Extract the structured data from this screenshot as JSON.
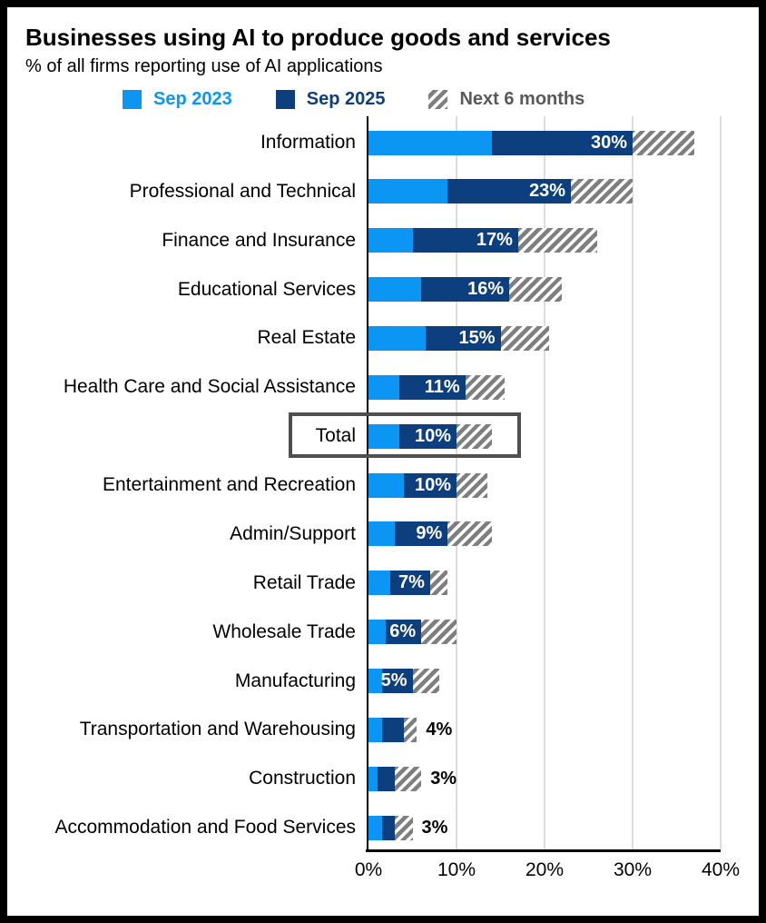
{
  "legend": [
    {
      "label": "Sep 2023",
      "color": "#0b96f3",
      "swatch": "solid",
      "icon": "square-swatch"
    },
    {
      "label": "Sep 2025",
      "color": "#0d3e7d",
      "swatch": "solid",
      "icon": "square-swatch"
    },
    {
      "label": "Next 6 months",
      "color": "#595959",
      "swatch": "hatch",
      "icon": "hatched-swatch"
    }
  ],
  "colors": {
    "sep_2023": "#0b96f3",
    "sep_2025": "#0d3e7d",
    "hatch_gray": "#7f7f7f",
    "gridline": "#dcdcdc",
    "axis": "#000000",
    "total_box_border": "#4f4f4f",
    "frame_border": "#000000"
  },
  "chart_data": {
    "type": "bar",
    "orientation": "horizontal",
    "mode": "layered_overlap",
    "title": "Businesses using AI to produce goods and services",
    "subtitle": "% of all firms reporting use of AI applications",
    "xlabel": "",
    "ylabel": "",
    "xlim": [
      0,
      40
    ],
    "x_tick_labels": [
      "0%",
      "10%",
      "20%",
      "30%",
      "40%"
    ],
    "grid": true,
    "legend_position": "top",
    "highlighted_category": "Total",
    "categories": [
      "Information",
      "Professional and Technical",
      "Finance and Insurance",
      "Educational Services",
      "Real Estate",
      "Health Care and Social Assistance",
      "Total",
      "Entertainment and Recreation",
      "Admin/Support",
      "Retail Trade",
      "Wholesale Trade",
      "Manufacturing",
      "Transportation and Warehousing",
      "Construction",
      "Accommodation and Food Services"
    ],
    "series": [
      {
        "name": "Sep 2023",
        "color": "#0b96f3",
        "style": "solid",
        "values": [
          14,
          9,
          5,
          6,
          6.5,
          3.5,
          3.5,
          4,
          3,
          2.5,
          2,
          1.5,
          1.5,
          1,
          1.5
        ]
      },
      {
        "name": "Sep 2025",
        "color": "#0d3e7d",
        "style": "solid",
        "values": [
          30,
          23,
          17,
          16,
          15,
          11,
          10,
          10,
          9,
          7,
          6,
          5,
          4,
          3,
          3
        ]
      },
      {
        "name": "Next 6 months",
        "color": "#7f7f7f",
        "style": "hatched",
        "values": [
          37,
          30,
          26,
          22,
          20.5,
          15.5,
          14,
          13.5,
          14,
          9,
          10,
          8,
          5.5,
          6,
          5
        ]
      }
    ],
    "bar_labels": [
      {
        "text": "30%",
        "position": "inside"
      },
      {
        "text": "23%",
        "position": "inside"
      },
      {
        "text": "17%",
        "position": "inside"
      },
      {
        "text": "16%",
        "position": "inside"
      },
      {
        "text": "15%",
        "position": "inside"
      },
      {
        "text": "11%",
        "position": "inside"
      },
      {
        "text": "10%",
        "position": "inside"
      },
      {
        "text": "10%",
        "position": "inside"
      },
      {
        "text": "9%",
        "position": "inside"
      },
      {
        "text": "7%",
        "position": "inside"
      },
      {
        "text": "6%",
        "position": "inside"
      },
      {
        "text": "5%",
        "position": "inside"
      },
      {
        "text": "4%",
        "position": "outside"
      },
      {
        "text": "3%",
        "position": "outside"
      },
      {
        "text": "3%",
        "position": "outside"
      }
    ]
  }
}
